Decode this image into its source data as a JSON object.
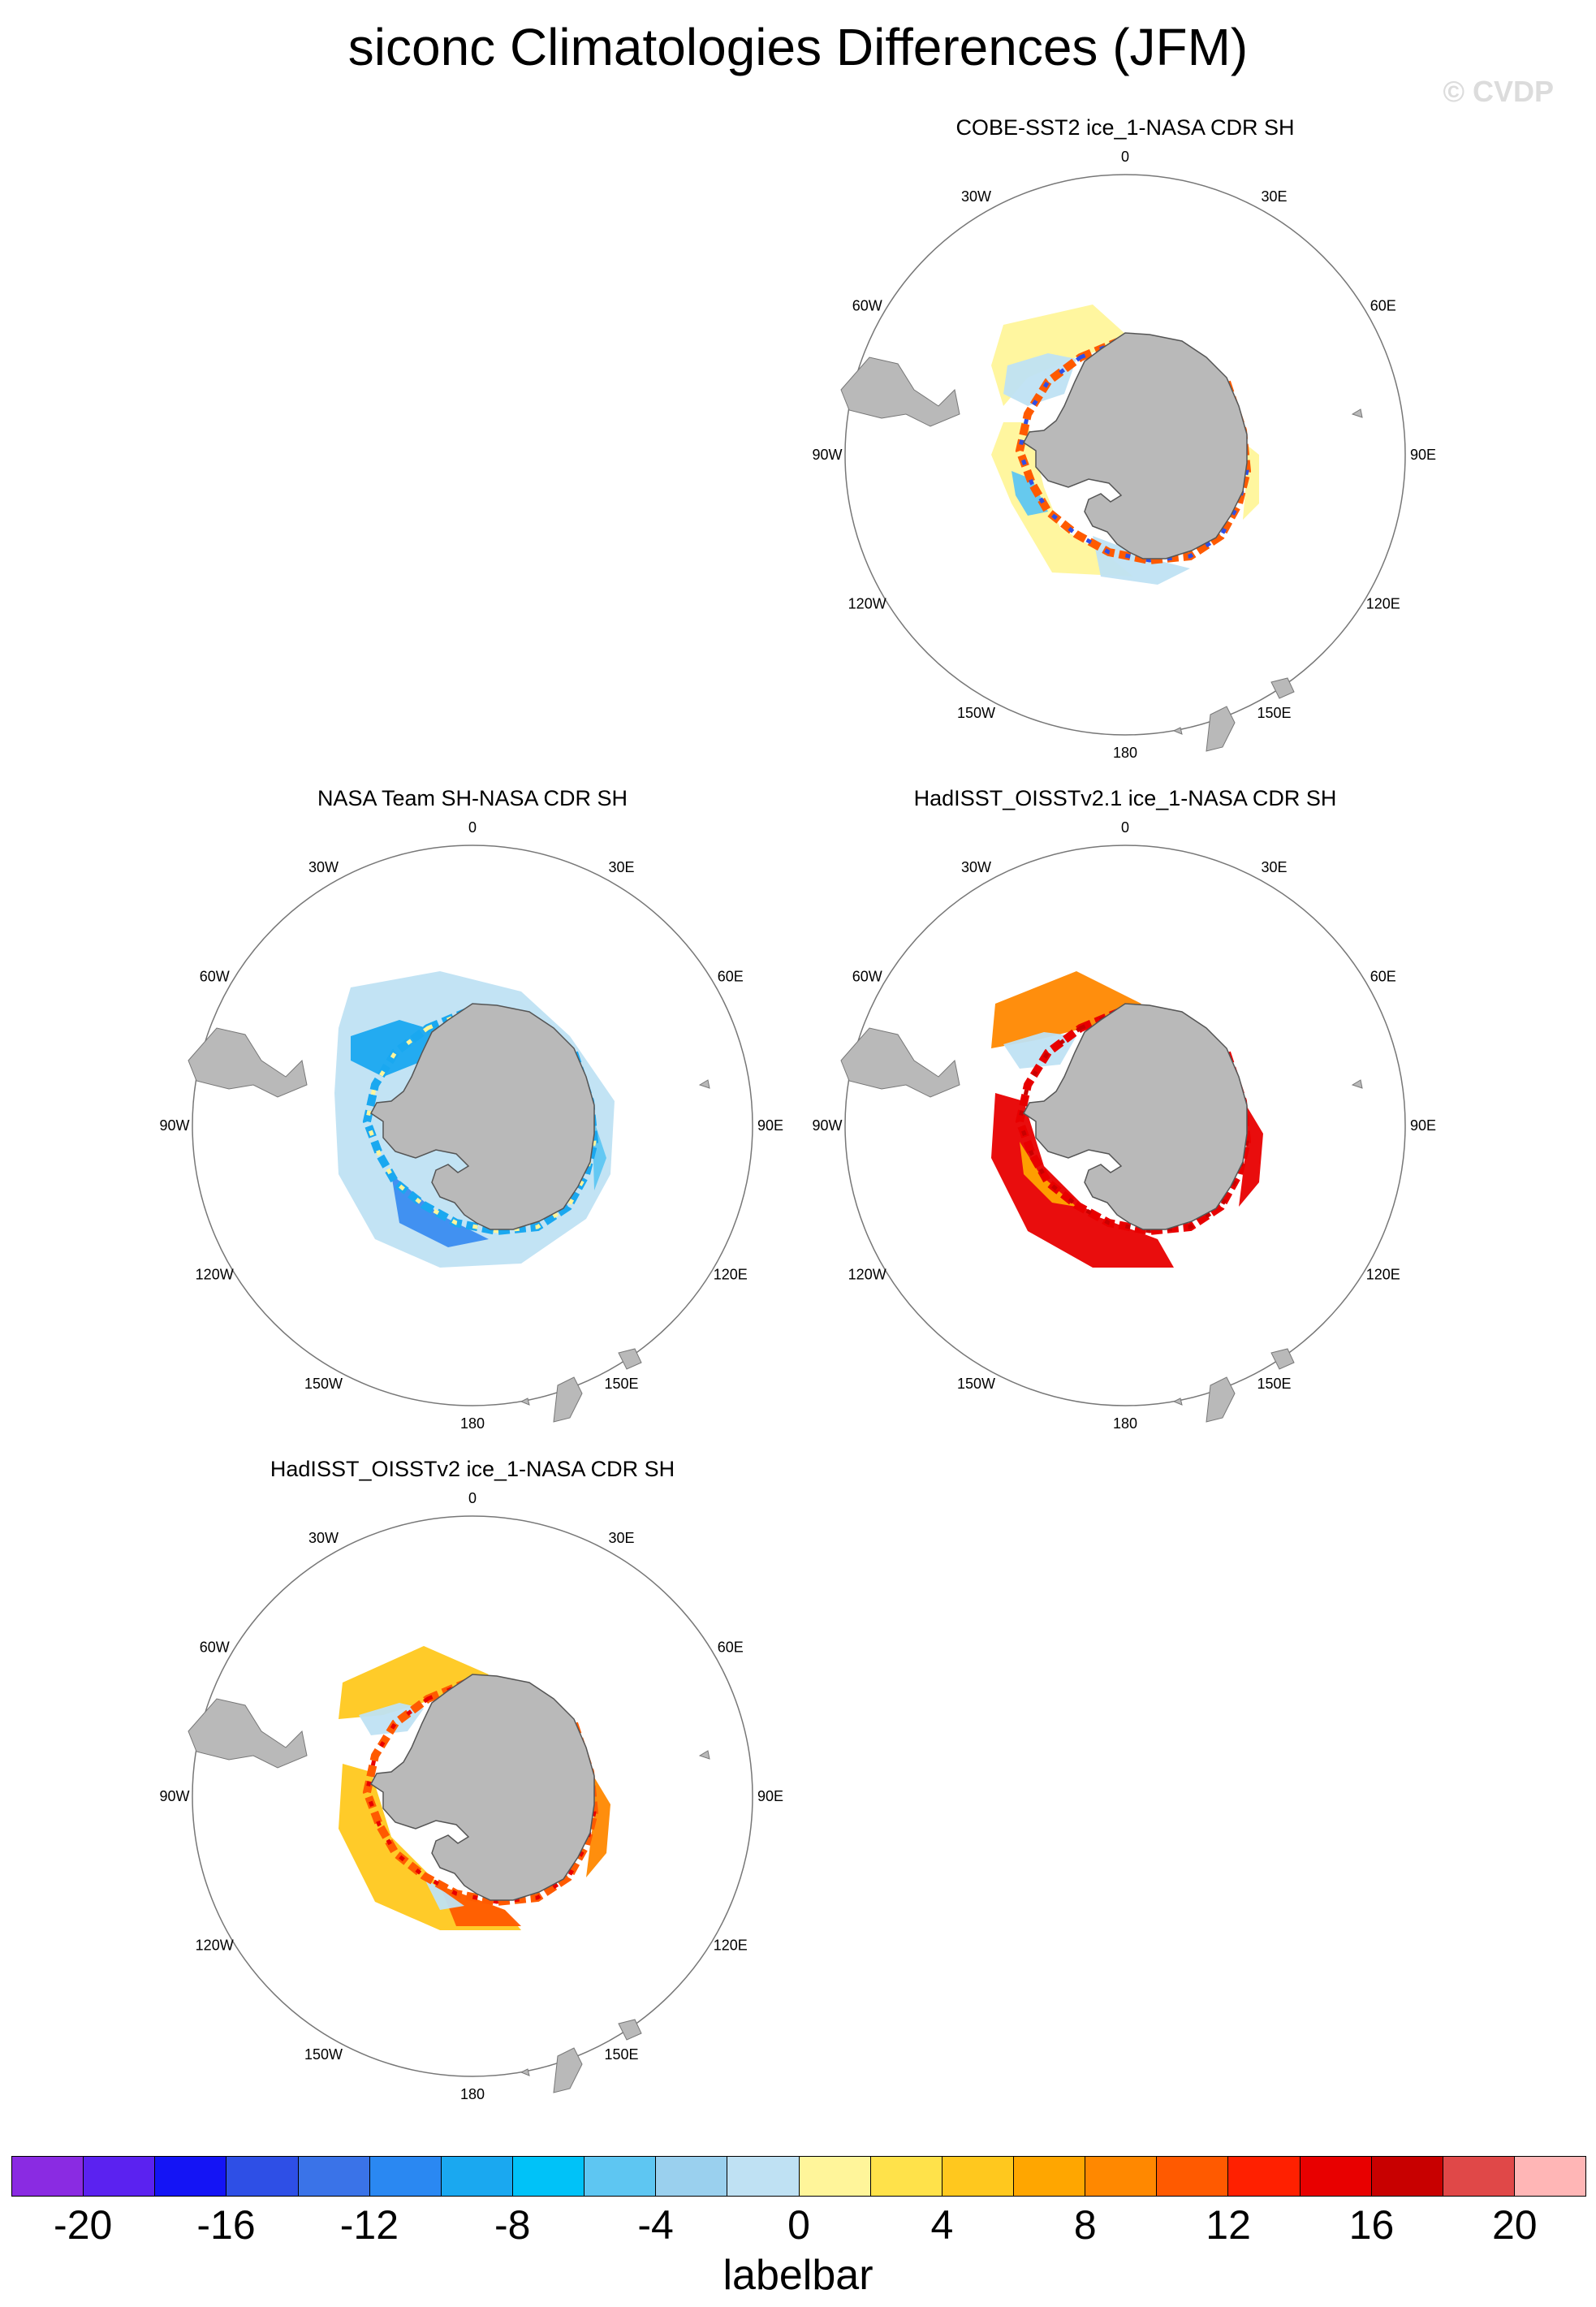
{
  "title": "siconc Climatologies Differences (JFM)",
  "watermark": "© CVDP",
  "panels": [
    {
      "id": "cobe",
      "title": "COBE-SST2 ice_1-NASA CDR SH",
      "pattern": "mixed"
    },
    {
      "id": "nasateam",
      "title": "NASA Team SH-NASA CDR SH",
      "pattern": "negative"
    },
    {
      "id": "hadoi21",
      "title": "HadISST_OISSTv2.1 ice_1-NASA CDR SH",
      "pattern": "strong_positive"
    },
    {
      "id": "hadoi2",
      "title": "HadISST_OISSTv2 ice_1-NASA CDR SH",
      "pattern": "positive"
    }
  ],
  "longitude_labels": [
    "0",
    "30E",
    "60E",
    "90E",
    "120E",
    "150E",
    "180",
    "150W",
    "120W",
    "90W",
    "60W",
    "30W"
  ],
  "colorbar": {
    "title": "labelbar",
    "tick_labels": [
      "-20",
      "-16",
      "-12",
      "-8",
      "-4",
      "0",
      "4",
      "8",
      "12",
      "16",
      "20"
    ],
    "colors": [
      "#8a2be2",
      "#5b22f0",
      "#1414f5",
      "#2e4fe6",
      "#3a73e8",
      "#2a88f2",
      "#1aa8f0",
      "#00c2f8",
      "#5ec6f2",
      "#9ad0ee",
      "#bfe1f3",
      "#fff59a",
      "#ffe24a",
      "#ffc81e",
      "#ffa600",
      "#ff8800",
      "#ff5a00",
      "#ff2000",
      "#e80000",
      "#c80000",
      "#e04848",
      "#ffb6b6"
    ]
  }
}
